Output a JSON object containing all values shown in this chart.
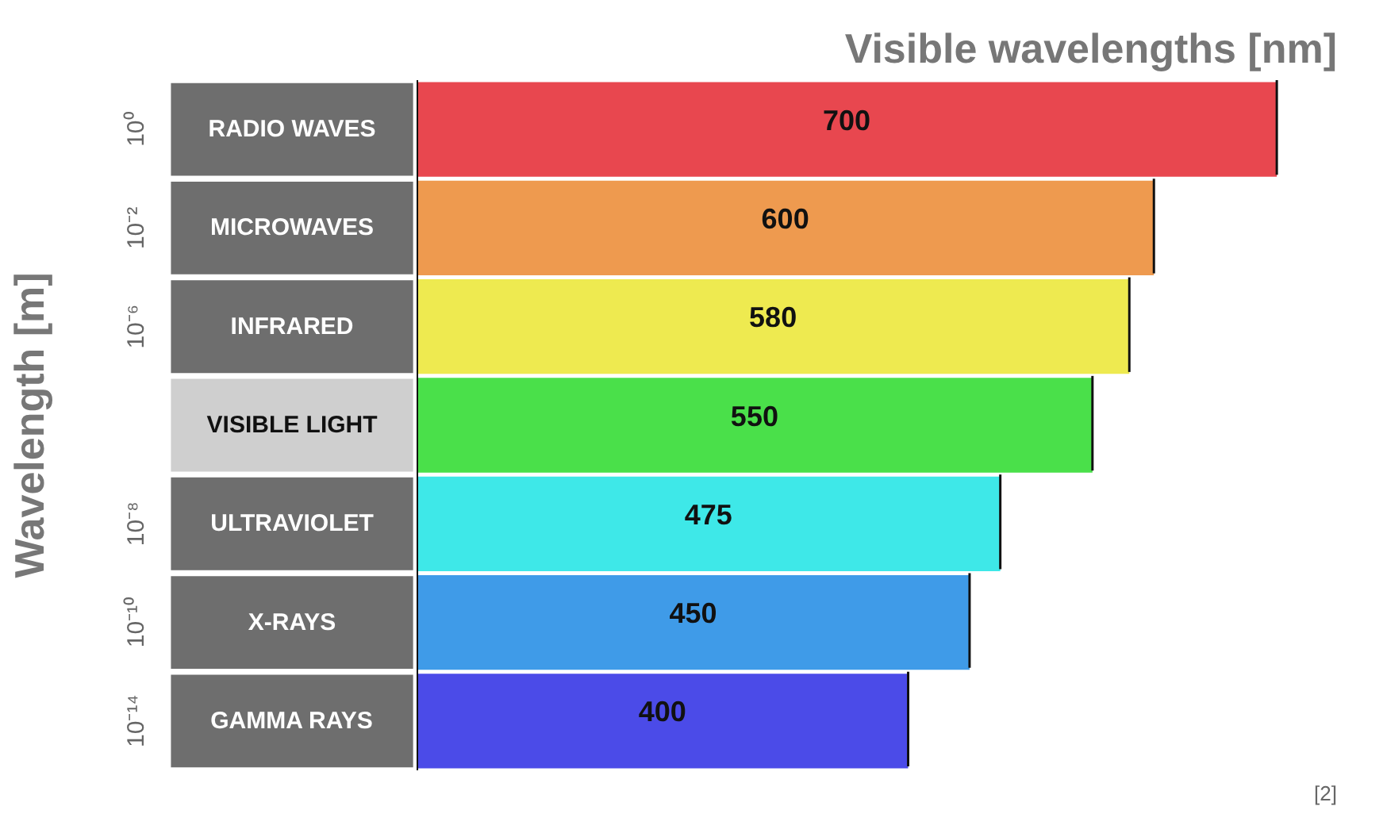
{
  "chart_data": [
    {
      "type": "other",
      "ylabel": "Wavelength [m]",
      "categories": [
        "RADIO WAVES",
        "MICROWAVES",
        "INFRARED",
        "VISIBLE LIGHT",
        "ULTRAVIOLET",
        "X-RAYS",
        "GAMMA RAYS"
      ],
      "colors": [
        "#6e6e6e",
        "#6e6e6e",
        "#6e6e6e",
        "#cfcfcf",
        "#6e6e6e",
        "#6e6e6e",
        "#6e6e6e"
      ],
      "annotations": [
        {
          "text": "10⁰",
          "y": "RADIO WAVES"
        },
        {
          "text": "10⁻²",
          "y": "MICROWAVES"
        },
        {
          "text": "10⁻⁶",
          "y": "INFRARED"
        },
        {
          "text": "10⁻⁸",
          "y": "ULTRAVIOLET"
        },
        {
          "text": "10⁻¹⁰",
          "y": "X-RAYS"
        },
        {
          "text": "10⁻¹⁴",
          "y": "GAMMA RAYS"
        }
      ]
    },
    {
      "type": "bar",
      "orientation": "horizontal",
      "title": "Visible wavelengths [nm]",
      "categories": [
        null,
        null,
        null,
        null,
        null,
        null,
        null
      ],
      "values": [
        700,
        600,
        580,
        550,
        475,
        450,
        400
      ],
      "colors": [
        "#e8474f",
        "#ee9a4f",
        "#eeea50",
        "#4ae04a",
        "#3ee8e8",
        "#3f9be8",
        "#4b4be8"
      ],
      "data_labels": true,
      "annotations": [
        "[2]"
      ]
    }
  ]
}
